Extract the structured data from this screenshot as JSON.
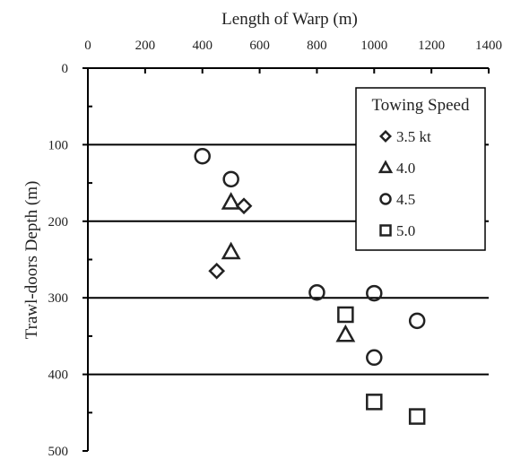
{
  "chart_data": {
    "type": "scatter",
    "xlabel": "Length of Warp (m)",
    "ylabel": "Trawl-doors Depth (m)",
    "xlim": [
      0,
      1400
    ],
    "ylim": [
      0,
      500
    ],
    "x_axis_position": "top",
    "y_axis_inverted": true,
    "x_ticks": [
      "0",
      "200",
      "400",
      "600",
      "800",
      "1000",
      "1200",
      "1400"
    ],
    "y_ticks": [
      "0",
      "100",
      "200",
      "300",
      "400",
      "500"
    ],
    "grid": "horizontal",
    "legend": {
      "title": "Towing Speed",
      "position": "top-right",
      "entries": [
        "3.5 kt",
        "4.0",
        "4.5",
        "5.0"
      ]
    },
    "series": [
      {
        "name": "3.5 kt",
        "marker": "diamond",
        "points": [
          [
            545,
            180
          ],
          [
            450,
            265
          ]
        ]
      },
      {
        "name": "4.0",
        "marker": "triangle",
        "points": [
          [
            500,
            175
          ],
          [
            500,
            240
          ],
          [
            900,
            348
          ]
        ]
      },
      {
        "name": "4.5",
        "marker": "circle",
        "points": [
          [
            400,
            115
          ],
          [
            500,
            145
          ],
          [
            800,
            293
          ],
          [
            1000,
            294
          ],
          [
            1000,
            378
          ],
          [
            1150,
            330
          ]
        ]
      },
      {
        "name": "5.0",
        "marker": "square",
        "points": [
          [
            900,
            322
          ],
          [
            1000,
            436
          ],
          [
            1150,
            455
          ]
        ]
      }
    ]
  }
}
